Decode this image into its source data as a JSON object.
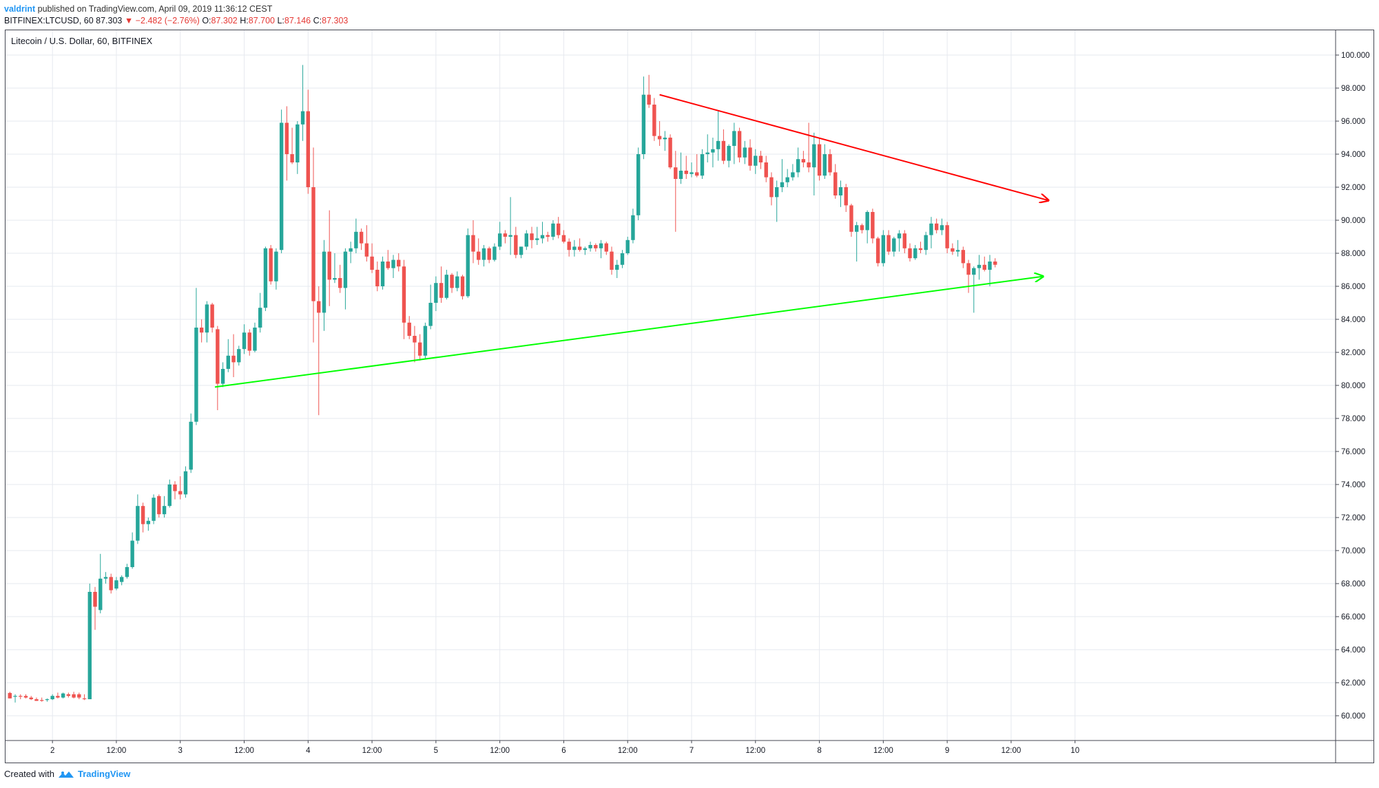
{
  "header": {
    "author": "valdrint",
    "published_text": "published on TradingView.com, April 09, 2019 11:36:12 CEST",
    "symbol_line": "BITFINEX:LTCUSD, 60",
    "last": "87.303",
    "change": "▼ −2.482 (−2.76%)",
    "o_label": "O:",
    "o": "87.302",
    "h_label": "H:",
    "h": "87.700",
    "l_label": "L:",
    "l": "87.146",
    "c_label": "C:",
    "c": "87.303"
  },
  "chart_title": "Litecoin / U.S. Dollar, 60, BITFINEX",
  "footer": {
    "created_with": "Created with",
    "brand": "TradingView"
  },
  "colors": {
    "up": "#26a69a",
    "down": "#ef5350",
    "grid": "#e6e9ef",
    "resistance": "#ff0000",
    "support": "#00ff00",
    "frame": "#434651"
  },
  "chart_data": {
    "type": "candlestick",
    "title": "Litecoin / U.S. Dollar, 60, BITFINEX",
    "ylim": [
      58.5,
      101.5
    ],
    "y_ticks": [
      "60.000",
      "62.000",
      "64.000",
      "66.000",
      "68.000",
      "70.000",
      "72.000",
      "74.000",
      "76.000",
      "78.000",
      "80.000",
      "82.000",
      "84.000",
      "86.000",
      "88.000",
      "90.000",
      "92.000",
      "94.000",
      "96.000",
      "98.000",
      "100.000"
    ],
    "x_labels": [
      {
        "label": "2",
        "i": 8
      },
      {
        "label": "12:00",
        "i": 20
      },
      {
        "label": "3",
        "i": 32
      },
      {
        "label": "12:00",
        "i": 44
      },
      {
        "label": "4",
        "i": 56
      },
      {
        "label": "12:00",
        "i": 68
      },
      {
        "label": "5",
        "i": 80
      },
      {
        "label": "12:00",
        "i": 92
      },
      {
        "label": "6",
        "i": 104
      },
      {
        "label": "12:00",
        "i": 116
      },
      {
        "label": "7",
        "i": 128
      },
      {
        "label": "12:00",
        "i": 140
      },
      {
        "label": "8",
        "i": 152
      },
      {
        "label": "12:00",
        "i": 164
      },
      {
        "label": "9",
        "i": 176
      },
      {
        "label": "12:00",
        "i": 188
      },
      {
        "label": "10",
        "i": 200
      }
    ],
    "last_value": 87.303,
    "trendlines": [
      {
        "name": "resistance",
        "from": {
          "i": 122,
          "y": 97.6
        },
        "to": {
          "i": 195,
          "y": 91.2
        }
      },
      {
        "name": "support",
        "from": {
          "i": 38.5,
          "y": 79.9
        },
        "to": {
          "i": 194,
          "y": 86.6
        }
      }
    ],
    "candles": [
      {
        "o": 61.38,
        "h": 61.45,
        "l": 61.05,
        "c": 61.05
      },
      {
        "o": 61.15,
        "h": 61.3,
        "l": 60.8,
        "c": 61.2
      },
      {
        "o": 61.2,
        "h": 61.3,
        "l": 61.0,
        "c": 61.15
      },
      {
        "o": 61.2,
        "h": 61.3,
        "l": 61.05,
        "c": 61.1
      },
      {
        "o": 61.1,
        "h": 61.2,
        "l": 60.95,
        "c": 61.0
      },
      {
        "o": 61.0,
        "h": 61.1,
        "l": 60.9,
        "c": 60.9
      },
      {
        "o": 60.95,
        "h": 61.1,
        "l": 60.85,
        "c": 60.9
      },
      {
        "o": 60.95,
        "h": 61.05,
        "l": 60.85,
        "c": 61.0
      },
      {
        "o": 61.0,
        "h": 61.3,
        "l": 60.95,
        "c": 61.2
      },
      {
        "o": 61.2,
        "h": 61.4,
        "l": 61.05,
        "c": 61.1
      },
      {
        "o": 61.1,
        "h": 61.4,
        "l": 61.05,
        "c": 61.35
      },
      {
        "o": 61.3,
        "h": 61.4,
        "l": 61.1,
        "c": 61.2
      },
      {
        "o": 61.3,
        "h": 61.45,
        "l": 61.05,
        "c": 61.1
      },
      {
        "o": 61.3,
        "h": 61.4,
        "l": 61.0,
        "c": 61.1
      },
      {
        "o": 61.05,
        "h": 61.3,
        "l": 60.95,
        "c": 61.0
      },
      {
        "o": 61.0,
        "h": 68.0,
        "l": 61.0,
        "c": 67.5
      },
      {
        "o": 67.5,
        "h": 67.8,
        "l": 65.2,
        "c": 66.6
      },
      {
        "o": 66.4,
        "h": 69.8,
        "l": 66.2,
        "c": 68.3
      },
      {
        "o": 68.3,
        "h": 68.7,
        "l": 68.0,
        "c": 68.4
      },
      {
        "o": 68.4,
        "h": 68.6,
        "l": 67.4,
        "c": 67.6
      },
      {
        "o": 67.7,
        "h": 68.4,
        "l": 67.6,
        "c": 68.2
      },
      {
        "o": 68.1,
        "h": 68.5,
        "l": 67.9,
        "c": 68.4
      },
      {
        "o": 68.4,
        "h": 69.2,
        "l": 68.3,
        "c": 69.0
      },
      {
        "o": 69.0,
        "h": 71.1,
        "l": 68.9,
        "c": 70.6
      },
      {
        "o": 70.6,
        "h": 73.4,
        "l": 70.4,
        "c": 72.7
      },
      {
        "o": 72.7,
        "h": 72.9,
        "l": 71.1,
        "c": 71.6
      },
      {
        "o": 71.6,
        "h": 72.0,
        "l": 71.2,
        "c": 71.8
      },
      {
        "o": 71.8,
        "h": 73.4,
        "l": 71.6,
        "c": 73.2
      },
      {
        "o": 73.3,
        "h": 73.4,
        "l": 72.0,
        "c": 72.2
      },
      {
        "o": 72.2,
        "h": 73.3,
        "l": 72.0,
        "c": 72.7
      },
      {
        "o": 72.7,
        "h": 74.3,
        "l": 72.6,
        "c": 74.0
      },
      {
        "o": 74.0,
        "h": 74.2,
        "l": 73.1,
        "c": 73.6
      },
      {
        "o": 73.6,
        "h": 74.5,
        "l": 73.1,
        "c": 73.4
      },
      {
        "o": 73.4,
        "h": 75.1,
        "l": 73.2,
        "c": 74.8
      },
      {
        "o": 74.9,
        "h": 78.3,
        "l": 74.7,
        "c": 77.8
      },
      {
        "o": 77.8,
        "h": 85.9,
        "l": 77.6,
        "c": 83.5
      },
      {
        "o": 83.5,
        "h": 84.0,
        "l": 82.6,
        "c": 83.2
      },
      {
        "o": 83.2,
        "h": 85.1,
        "l": 82.6,
        "c": 84.9
      },
      {
        "o": 84.9,
        "h": 85.0,
        "l": 83.2,
        "c": 83.5
      },
      {
        "o": 83.4,
        "h": 83.6,
        "l": 78.5,
        "c": 80.1
      },
      {
        "o": 80.1,
        "h": 81.4,
        "l": 79.9,
        "c": 81.0
      },
      {
        "o": 81.0,
        "h": 82.8,
        "l": 80.8,
        "c": 81.8
      },
      {
        "o": 81.8,
        "h": 83.1,
        "l": 80.5,
        "c": 81.4
      },
      {
        "o": 81.4,
        "h": 82.4,
        "l": 81.2,
        "c": 82.2
      },
      {
        "o": 82.2,
        "h": 83.7,
        "l": 81.9,
        "c": 83.2
      },
      {
        "o": 83.2,
        "h": 83.4,
        "l": 81.8,
        "c": 82.1
      },
      {
        "o": 82.1,
        "h": 83.8,
        "l": 82.0,
        "c": 83.5
      },
      {
        "o": 83.5,
        "h": 85.6,
        "l": 83.2,
        "c": 84.7
      },
      {
        "o": 84.7,
        "h": 88.4,
        "l": 84.5,
        "c": 88.3
      },
      {
        "o": 88.3,
        "h": 88.5,
        "l": 86.1,
        "c": 86.3
      },
      {
        "o": 86.3,
        "h": 88.3,
        "l": 85.8,
        "c": 88.1
      },
      {
        "o": 88.2,
        "h": 96.7,
        "l": 88.0,
        "c": 95.9
      },
      {
        "o": 95.9,
        "h": 96.9,
        "l": 92.4,
        "c": 94.0
      },
      {
        "o": 94.0,
        "h": 95.6,
        "l": 93.4,
        "c": 93.5
      },
      {
        "o": 93.5,
        "h": 96.0,
        "l": 92.8,
        "c": 95.8
      },
      {
        "o": 95.8,
        "h": 99.4,
        "l": 94.8,
        "c": 96.6
      },
      {
        "o": 96.6,
        "h": 97.9,
        "l": 91.6,
        "c": 92.0
      },
      {
        "o": 92.0,
        "h": 94.4,
        "l": 82.6,
        "c": 85.1
      },
      {
        "o": 85.1,
        "h": 86.0,
        "l": 78.2,
        "c": 84.4
      },
      {
        "o": 84.4,
        "h": 88.8,
        "l": 83.3,
        "c": 88.1
      },
      {
        "o": 88.1,
        "h": 90.6,
        "l": 84.8,
        "c": 86.4
      },
      {
        "o": 86.4,
        "h": 88.0,
        "l": 86.2,
        "c": 86.5
      },
      {
        "o": 86.5,
        "h": 87.3,
        "l": 85.6,
        "c": 85.9
      },
      {
        "o": 85.9,
        "h": 88.3,
        "l": 84.6,
        "c": 88.1
      },
      {
        "o": 88.1,
        "h": 88.7,
        "l": 87.4,
        "c": 88.3
      },
      {
        "o": 88.3,
        "h": 90.1,
        "l": 88.0,
        "c": 89.3
      },
      {
        "o": 89.3,
        "h": 89.5,
        "l": 88.2,
        "c": 88.6
      },
      {
        "o": 88.6,
        "h": 89.7,
        "l": 87.5,
        "c": 87.8
      },
      {
        "o": 87.8,
        "h": 88.6,
        "l": 86.8,
        "c": 87.0
      },
      {
        "o": 87.0,
        "h": 87.5,
        "l": 85.7,
        "c": 86.0
      },
      {
        "o": 86.0,
        "h": 87.8,
        "l": 85.8,
        "c": 87.5
      },
      {
        "o": 87.5,
        "h": 88.2,
        "l": 87.0,
        "c": 87.1
      },
      {
        "o": 87.1,
        "h": 87.9,
        "l": 86.5,
        "c": 87.6
      },
      {
        "o": 87.6,
        "h": 88.0,
        "l": 86.9,
        "c": 87.2
      },
      {
        "o": 87.2,
        "h": 87.6,
        "l": 82.8,
        "c": 83.8
      },
      {
        "o": 83.8,
        "h": 84.2,
        "l": 82.8,
        "c": 83.0
      },
      {
        "o": 83.0,
        "h": 83.6,
        "l": 81.4,
        "c": 82.6
      },
      {
        "o": 82.6,
        "h": 83.1,
        "l": 81.5,
        "c": 81.8
      },
      {
        "o": 81.8,
        "h": 83.8,
        "l": 81.6,
        "c": 83.6
      },
      {
        "o": 83.6,
        "h": 86.1,
        "l": 83.4,
        "c": 85.0
      },
      {
        "o": 85.0,
        "h": 86.6,
        "l": 84.5,
        "c": 86.2
      },
      {
        "o": 86.2,
        "h": 87.2,
        "l": 85.0,
        "c": 85.3
      },
      {
        "o": 85.3,
        "h": 87.0,
        "l": 85.2,
        "c": 86.7
      },
      {
        "o": 86.7,
        "h": 86.8,
        "l": 85.6,
        "c": 85.9
      },
      {
        "o": 85.9,
        "h": 86.9,
        "l": 85.7,
        "c": 86.6
      },
      {
        "o": 86.6,
        "h": 86.7,
        "l": 85.2,
        "c": 85.4
      },
      {
        "o": 85.4,
        "h": 89.5,
        "l": 85.3,
        "c": 89.1
      },
      {
        "o": 89.1,
        "h": 90.0,
        "l": 87.4,
        "c": 88.1
      },
      {
        "o": 88.1,
        "h": 88.9,
        "l": 87.3,
        "c": 87.6
      },
      {
        "o": 87.6,
        "h": 88.5,
        "l": 87.2,
        "c": 88.3
      },
      {
        "o": 88.3,
        "h": 88.4,
        "l": 87.4,
        "c": 87.6
      },
      {
        "o": 87.6,
        "h": 88.6,
        "l": 87.5,
        "c": 88.4
      },
      {
        "o": 88.4,
        "h": 89.9,
        "l": 88.2,
        "c": 89.2
      },
      {
        "o": 89.2,
        "h": 89.4,
        "l": 88.6,
        "c": 89.0
      },
      {
        "o": 89.0,
        "h": 91.4,
        "l": 87.9,
        "c": 89.1
      },
      {
        "o": 89.1,
        "h": 89.6,
        "l": 87.7,
        "c": 87.9
      },
      {
        "o": 87.9,
        "h": 88.4,
        "l": 87.7,
        "c": 88.4
      },
      {
        "o": 88.4,
        "h": 89.4,
        "l": 88.2,
        "c": 89.2
      },
      {
        "o": 89.2,
        "h": 89.6,
        "l": 88.3,
        "c": 88.8
      },
      {
        "o": 88.8,
        "h": 89.6,
        "l": 88.5,
        "c": 88.9
      },
      {
        "o": 88.9,
        "h": 89.9,
        "l": 88.6,
        "c": 89.1
      },
      {
        "o": 89.1,
        "h": 89.3,
        "l": 88.7,
        "c": 89.0
      },
      {
        "o": 89.0,
        "h": 90.0,
        "l": 88.8,
        "c": 89.8
      },
      {
        "o": 89.8,
        "h": 90.2,
        "l": 88.9,
        "c": 89.1
      },
      {
        "o": 89.1,
        "h": 89.4,
        "l": 88.6,
        "c": 88.7
      },
      {
        "o": 88.7,
        "h": 88.9,
        "l": 87.8,
        "c": 88.2
      },
      {
        "o": 88.2,
        "h": 88.8,
        "l": 87.8,
        "c": 88.4
      },
      {
        "o": 88.4,
        "h": 88.9,
        "l": 88.1,
        "c": 88.2
      },
      {
        "o": 88.2,
        "h": 88.4,
        "l": 87.9,
        "c": 88.3
      },
      {
        "o": 88.3,
        "h": 88.7,
        "l": 88.1,
        "c": 88.5
      },
      {
        "o": 88.5,
        "h": 88.6,
        "l": 88.1,
        "c": 88.3
      },
      {
        "o": 88.3,
        "h": 88.8,
        "l": 87.7,
        "c": 88.6
      },
      {
        "o": 88.6,
        "h": 88.7,
        "l": 87.9,
        "c": 88.1
      },
      {
        "o": 88.1,
        "h": 88.4,
        "l": 86.7,
        "c": 87.0
      },
      {
        "o": 87.0,
        "h": 87.6,
        "l": 86.5,
        "c": 87.3
      },
      {
        "o": 87.3,
        "h": 88.2,
        "l": 87.1,
        "c": 88.0
      },
      {
        "o": 88.0,
        "h": 89.0,
        "l": 87.9,
        "c": 88.8
      },
      {
        "o": 88.8,
        "h": 90.7,
        "l": 88.6,
        "c": 90.3
      },
      {
        "o": 90.3,
        "h": 94.4,
        "l": 90.0,
        "c": 94.0
      },
      {
        "o": 94.0,
        "h": 98.7,
        "l": 93.7,
        "c": 97.6
      },
      {
        "o": 97.6,
        "h": 98.8,
        "l": 96.8,
        "c": 97.0
      },
      {
        "o": 97.0,
        "h": 97.4,
        "l": 94.8,
        "c": 95.1
      },
      {
        "o": 95.1,
        "h": 96.0,
        "l": 94.5,
        "c": 94.9
      },
      {
        "o": 94.9,
        "h": 95.4,
        "l": 94.2,
        "c": 95.0
      },
      {
        "o": 95.0,
        "h": 95.2,
        "l": 93.1,
        "c": 93.2
      },
      {
        "o": 93.2,
        "h": 94.2,
        "l": 89.3,
        "c": 92.5
      },
      {
        "o": 92.5,
        "h": 94.1,
        "l": 92.2,
        "c": 93.0
      },
      {
        "o": 93.0,
        "h": 93.9,
        "l": 92.5,
        "c": 92.8
      },
      {
        "o": 92.8,
        "h": 93.5,
        "l": 92.6,
        "c": 92.9
      },
      {
        "o": 92.9,
        "h": 94.0,
        "l": 92.6,
        "c": 92.7
      },
      {
        "o": 92.7,
        "h": 94.3,
        "l": 92.5,
        "c": 94.0
      },
      {
        "o": 94.0,
        "h": 95.2,
        "l": 93.5,
        "c": 94.1
      },
      {
        "o": 94.1,
        "h": 95.0,
        "l": 93.2,
        "c": 94.3
      },
      {
        "o": 94.3,
        "h": 96.6,
        "l": 93.6,
        "c": 94.8
      },
      {
        "o": 94.8,
        "h": 95.5,
        "l": 93.4,
        "c": 93.6
      },
      {
        "o": 93.6,
        "h": 94.6,
        "l": 93.2,
        "c": 94.5
      },
      {
        "o": 94.5,
        "h": 95.9,
        "l": 93.4,
        "c": 95.4
      },
      {
        "o": 95.4,
        "h": 95.6,
        "l": 93.5,
        "c": 93.8
      },
      {
        "o": 93.8,
        "h": 94.8,
        "l": 93.4,
        "c": 94.4
      },
      {
        "o": 94.4,
        "h": 94.9,
        "l": 93.0,
        "c": 93.3
      },
      {
        "o": 93.3,
        "h": 94.3,
        "l": 92.8,
        "c": 93.9
      },
      {
        "o": 93.9,
        "h": 94.2,
        "l": 93.1,
        "c": 93.5
      },
      {
        "o": 93.5,
        "h": 93.9,
        "l": 92.3,
        "c": 92.6
      },
      {
        "o": 92.6,
        "h": 92.9,
        "l": 90.9,
        "c": 91.4
      },
      {
        "o": 91.4,
        "h": 92.4,
        "l": 89.9,
        "c": 92.0
      },
      {
        "o": 92.0,
        "h": 93.7,
        "l": 91.7,
        "c": 92.3
      },
      {
        "o": 92.3,
        "h": 93.1,
        "l": 92.0,
        "c": 92.6
      },
      {
        "o": 92.6,
        "h": 93.4,
        "l": 92.4,
        "c": 92.9
      },
      {
        "o": 92.9,
        "h": 94.4,
        "l": 92.6,
        "c": 93.7
      },
      {
        "o": 93.7,
        "h": 94.2,
        "l": 93.2,
        "c": 93.5
      },
      {
        "o": 93.5,
        "h": 95.9,
        "l": 92.9,
        "c": 93.2
      },
      {
        "o": 93.2,
        "h": 95.3,
        "l": 91.5,
        "c": 94.6
      },
      {
        "o": 94.6,
        "h": 95.0,
        "l": 92.4,
        "c": 92.7
      },
      {
        "o": 92.7,
        "h": 94.6,
        "l": 92.5,
        "c": 94.0
      },
      {
        "o": 94.0,
        "h": 94.3,
        "l": 92.7,
        "c": 92.9
      },
      {
        "o": 92.9,
        "h": 93.4,
        "l": 91.3,
        "c": 91.5
      },
      {
        "o": 91.5,
        "h": 92.4,
        "l": 90.8,
        "c": 92.0
      },
      {
        "o": 92.0,
        "h": 92.2,
        "l": 90.5,
        "c": 90.9
      },
      {
        "o": 90.9,
        "h": 91.0,
        "l": 89.0,
        "c": 89.3
      },
      {
        "o": 89.3,
        "h": 89.9,
        "l": 87.5,
        "c": 89.7
      },
      {
        "o": 89.7,
        "h": 89.8,
        "l": 89.2,
        "c": 89.4
      },
      {
        "o": 89.4,
        "h": 90.6,
        "l": 88.6,
        "c": 90.5
      },
      {
        "o": 90.5,
        "h": 90.7,
        "l": 88.6,
        "c": 88.9
      },
      {
        "o": 88.9,
        "h": 89.0,
        "l": 87.2,
        "c": 87.4
      },
      {
        "o": 87.4,
        "h": 89.4,
        "l": 87.2,
        "c": 89.1
      },
      {
        "o": 89.1,
        "h": 89.4,
        "l": 87.9,
        "c": 88.1
      },
      {
        "o": 88.1,
        "h": 89.0,
        "l": 87.8,
        "c": 88.9
      },
      {
        "o": 88.9,
        "h": 89.4,
        "l": 88.1,
        "c": 89.2
      },
      {
        "o": 89.2,
        "h": 89.4,
        "l": 88.0,
        "c": 88.3
      },
      {
        "o": 88.3,
        "h": 88.6,
        "l": 87.5,
        "c": 87.7
      },
      {
        "o": 87.7,
        "h": 88.5,
        "l": 87.6,
        "c": 88.3
      },
      {
        "o": 88.3,
        "h": 88.7,
        "l": 88.0,
        "c": 88.2
      },
      {
        "o": 88.2,
        "h": 89.3,
        "l": 87.9,
        "c": 89.1
      },
      {
        "o": 89.1,
        "h": 90.2,
        "l": 88.3,
        "c": 89.8
      },
      {
        "o": 89.8,
        "h": 90.1,
        "l": 89.2,
        "c": 89.4
      },
      {
        "o": 89.4,
        "h": 90.1,
        "l": 89.1,
        "c": 89.7
      },
      {
        "o": 89.7,
        "h": 89.9,
        "l": 88.0,
        "c": 88.3
      },
      {
        "o": 88.3,
        "h": 88.6,
        "l": 87.9,
        "c": 88.1
      },
      {
        "o": 88.1,
        "h": 88.8,
        "l": 87.8,
        "c": 88.2
      },
      {
        "o": 88.2,
        "h": 88.4,
        "l": 87.1,
        "c": 87.4
      },
      {
        "o": 87.4,
        "h": 87.6,
        "l": 85.6,
        "c": 86.7
      },
      {
        "o": 86.7,
        "h": 87.2,
        "l": 84.4,
        "c": 87.1
      },
      {
        "o": 87.1,
        "h": 87.9,
        "l": 86.4,
        "c": 87.3
      },
      {
        "o": 87.3,
        "h": 87.8,
        "l": 86.9,
        "c": 87.0
      },
      {
        "o": 87.0,
        "h": 87.9,
        "l": 86.0,
        "c": 87.5
      },
      {
        "o": 87.5,
        "h": 87.7,
        "l": 87.146,
        "c": 87.303
      }
    ]
  }
}
